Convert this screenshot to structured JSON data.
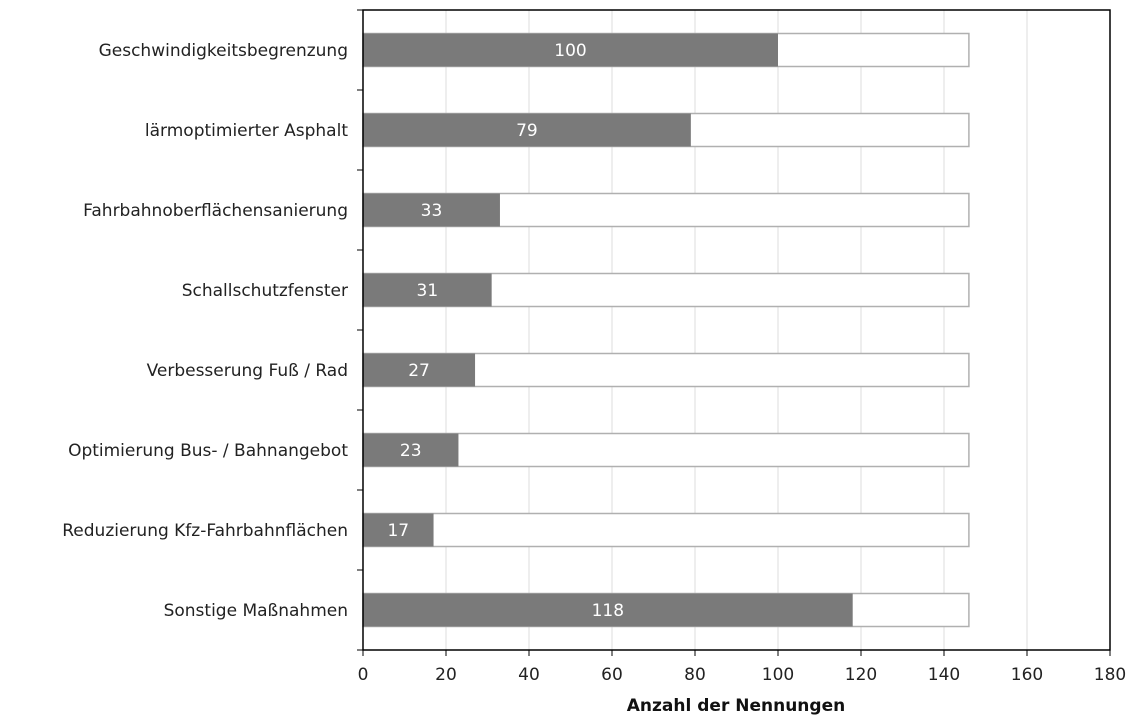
{
  "chart_data": {
    "type": "bar",
    "orientation": "horizontal",
    "xlabel": "Anzahl der Nennungen",
    "xlim": [
      0,
      180
    ],
    "x_ticks": [
      0,
      20,
      40,
      60,
      80,
      100,
      120,
      140,
      160,
      180
    ],
    "grid": true,
    "categories": [
      "Geschwindigkeitsbegrenzung",
      "lärmoptimierter Asphalt",
      "Fahrbahnoberflächensanierung",
      "Schallschutzfenster",
      "Verbesserung Fuß / Rad",
      "Optimierung Bus- / Bahnangebot",
      "Reduzierung Kfz-Fahrbahnflächen",
      "Sonstige Maßnahmen"
    ],
    "values": [
      100,
      79,
      33,
      31,
      27,
      23,
      17,
      118
    ],
    "background_max": 146,
    "colors": {
      "bar": "#7a7a7a",
      "background_bar_fill": "#ffffff",
      "background_bar_stroke": "#b0b0b0",
      "grid": "#dddddd",
      "axis": "#000000",
      "data_label": "#ffffff"
    }
  }
}
